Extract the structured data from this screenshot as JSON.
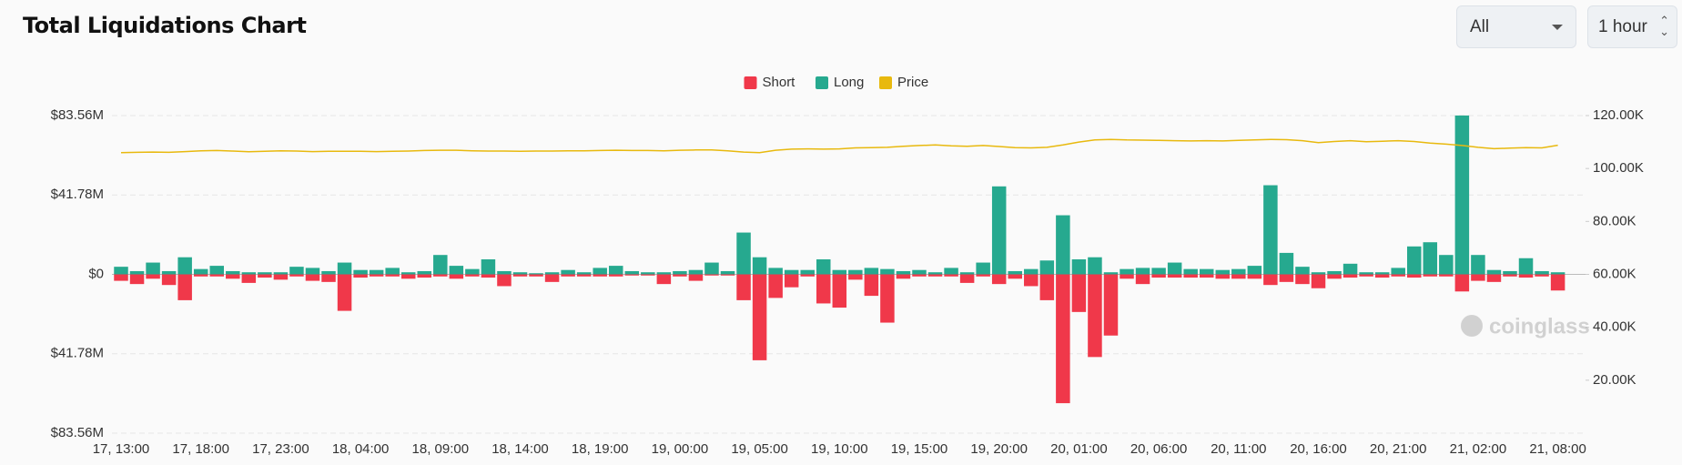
{
  "chart_data": {
    "type": "bar",
    "title": "Total Liquidations Chart",
    "categories": [
      "17, 13:00",
      null,
      null,
      null,
      null,
      "17, 18:00",
      null,
      null,
      null,
      null,
      "17, 23:00",
      null,
      null,
      null,
      null,
      "18, 04:00",
      null,
      null,
      null,
      null,
      "18, 09:00",
      null,
      null,
      null,
      null,
      "18, 14:00",
      null,
      null,
      null,
      null,
      "18, 19:00",
      null,
      null,
      null,
      null,
      "19, 00:00",
      null,
      null,
      null,
      null,
      "19, 05:00",
      null,
      null,
      null,
      null,
      "19, 10:00",
      null,
      null,
      null,
      null,
      "19, 15:00",
      null,
      null,
      null,
      null,
      "19, 20:00",
      null,
      null,
      null,
      null,
      "20, 01:00",
      null,
      null,
      null,
      null,
      "20, 06:00",
      null,
      null,
      null,
      null,
      "20, 11:00",
      null,
      null,
      null,
      null,
      "20, 16:00",
      null,
      null,
      null,
      null,
      "20, 21:00",
      null,
      null,
      null,
      null,
      "21, 02:00",
      null,
      null,
      null,
      null,
      "21, 08:00"
    ],
    "series": [
      {
        "name": "Short",
        "color": "#f0384a",
        "values": [
          -3.4,
          -5.1,
          -2.3,
          -5.6,
          -13.6,
          -1.1,
          -1.1,
          -2.3,
          -4.5,
          -1.7,
          -2.8,
          -1.1,
          -3.4,
          -4.0,
          -19.2,
          -1.7,
          -1.1,
          -1.1,
          -2.3,
          -1.7,
          -1.1,
          -2.3,
          -1.1,
          -1.7,
          -6.2,
          -1.1,
          -1.1,
          -4.0,
          -1.1,
          -1.1,
          -1.1,
          -1.1,
          -0.6,
          -0.6,
          -5.1,
          -1.1,
          -3.4,
          -0.6,
          -0.6,
          -13.6,
          -45.2,
          -12.4,
          -6.8,
          -1.1,
          -15.3,
          -17.5,
          -2.8,
          -11.3,
          -25.4,
          -2.3,
          -1.1,
          -1.1,
          -1.1,
          -4.5,
          -1.1,
          -5.1,
          -2.3,
          -6.2,
          -13.6,
          -67.8,
          -19.8,
          -43.5,
          -32.2,
          -2.3,
          -5.1,
          -1.7,
          -1.7,
          -1.7,
          -1.7,
          -2.3,
          -2.3,
          -2.3,
          -5.6,
          -4.0,
          -5.1,
          -7.3,
          -2.3,
          -1.7,
          -1.1,
          -1.7,
          -1.1,
          -1.7,
          -1.1,
          -1.1,
          -9.0,
          -3.4,
          -4.0,
          -1.1,
          -1.7,
          -1.1,
          -8.5
        ]
      },
      {
        "name": "Long",
        "color": "#26a98f",
        "values": [
          4.0,
          1.7,
          6.2,
          1.7,
          9.0,
          2.8,
          4.5,
          1.7,
          1.1,
          1.1,
          1.1,
          4.0,
          3.4,
          1.7,
          6.2,
          2.3,
          2.3,
          3.4,
          1.1,
          1.7,
          10.2,
          4.5,
          2.8,
          7.9,
          1.7,
          1.1,
          0.6,
          1.1,
          2.3,
          1.1,
          3.4,
          4.5,
          1.7,
          1.1,
          1.1,
          1.7,
          2.3,
          6.2,
          1.7,
          22.0,
          9.0,
          3.4,
          2.3,
          2.3,
          7.9,
          2.3,
          2.3,
          3.4,
          2.8,
          1.7,
          2.3,
          1.1,
          3.4,
          1.1,
          6.2,
          46.3,
          1.7,
          2.8,
          7.3,
          31.1,
          7.9,
          9.0,
          1.1,
          2.8,
          3.4,
          3.4,
          6.2,
          2.8,
          2.8,
          2.3,
          2.8,
          4.5,
          46.9,
          11.3,
          4.0,
          1.1,
          1.7,
          5.6,
          1.1,
          1.1,
          3.4,
          14.7,
          16.9,
          10.2,
          83.6,
          10.2,
          2.3,
          1.7,
          8.5,
          1.7,
          1.1
        ]
      },
      {
        "name": "Price",
        "color": "#e8b90e",
        "type": "line",
        "axis": "y2",
        "values": [
          106000,
          106100,
          106200,
          106100,
          106400,
          106700,
          106800,
          106600,
          106300,
          106500,
          106700,
          106600,
          106400,
          106500,
          106500,
          106500,
          106400,
          106500,
          106600,
          106800,
          106900,
          106900,
          106700,
          106600,
          106600,
          106500,
          106600,
          106600,
          106700,
          106700,
          106800,
          106900,
          106800,
          106800,
          106700,
          106900,
          107000,
          107000,
          106700,
          106200,
          106000,
          106900,
          107300,
          107400,
          107300,
          107400,
          107800,
          107900,
          108000,
          108400,
          108700,
          108900,
          108600,
          108400,
          108700,
          108300,
          107900,
          107800,
          108000,
          108900,
          110000,
          110800,
          111000,
          110800,
          110700,
          110600,
          110500,
          110400,
          110500,
          110400,
          110600,
          110800,
          111000,
          110900,
          110500,
          109800,
          110200,
          110500,
          110100,
          110300,
          110500,
          110200,
          109600,
          109200,
          108700,
          108000,
          107500,
          107700,
          107900,
          107800,
          108800
        ]
      }
    ],
    "ylim": [
      -83.56,
      83.56
    ],
    "yticks": [
      {
        "value": 83.56,
        "label": "$83.56M"
      },
      {
        "value": 41.78,
        "label": "$41.78M"
      },
      {
        "value": 0,
        "label": "$0"
      },
      {
        "value": -41.78,
        "label": "$41.78M"
      },
      {
        "value": -83.56,
        "label": "$83.56M"
      }
    ],
    "y2lim": [
      0,
      120000
    ],
    "y2ticks": [
      {
        "value": 20000,
        "label": "20.00K"
      },
      {
        "value": 40000,
        "label": "40.00K"
      },
      {
        "value": 60000,
        "label": "60.00K"
      },
      {
        "value": 80000,
        "label": "80.00K"
      },
      {
        "value": 100000,
        "label": "100.00K"
      },
      {
        "value": 120000,
        "label": "120.00K"
      }
    ],
    "grid": true,
    "legend": "top"
  },
  "controls": [
    "All",
    "1 hour"
  ],
  "watermark": "coinglass"
}
